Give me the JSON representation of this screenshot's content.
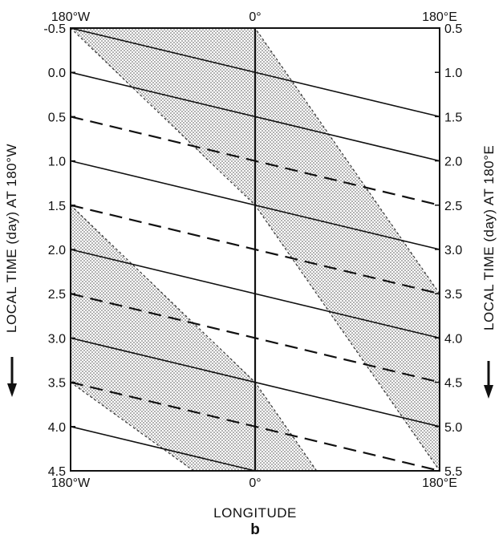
{
  "top_labels": {
    "left": "180°W",
    "center": "0°",
    "right": "180°E"
  },
  "bottom_labels": {
    "left": "180°W",
    "center": "0°",
    "right": "180°E"
  },
  "x_axis_label": "LONGITUDE",
  "panel_label": "b",
  "left_axis_label": "LOCAL TIME  (day) AT 180°W",
  "right_axis_label": "LOCAL TIME  (day) AT 180°E",
  "left_ticks": [
    "-0.5",
    "0.0",
    "0.5",
    "1.0",
    "1.5",
    "2.0",
    "2.5",
    "3.0",
    "3.5",
    "4.0",
    "4.5"
  ],
  "right_ticks": [
    "0.5",
    "1.0",
    "1.5",
    "2.0",
    "2.5",
    "3.0",
    "3.5",
    "4.0",
    "4.5",
    "5.0",
    "5.5"
  ],
  "colors": {
    "ink": "#111111",
    "shade": "#bdbdbd",
    "background": "#ffffff"
  },
  "chart_data": {
    "type": "line",
    "xlabel": "LONGITUDE",
    "ylabel_left": "LOCAL TIME  (day) AT 180°W",
    "ylabel_right": "LOCAL TIME  (day) AT 180°E",
    "xlim": [
      -180,
      180
    ],
    "ylim_left": [
      -0.5,
      4.5
    ],
    "ylim_right": [
      0.5,
      5.5
    ],
    "solid_lines_start_left_time": [
      -0.5,
      0.0,
      1.0,
      2.0,
      3.0,
      4.0
    ],
    "dashed_lines_start_left_time": [
      0.5,
      1.5,
      2.5,
      3.5
    ],
    "shaded_bands": [
      {
        "upper_edge": [
          [
            -180,
            -0.5
          ],
          [
            0,
            -0.5
          ],
          [
            180,
            2.5
          ]
        ],
        "lower_edge": [
          [
            -180,
            -0.5
          ],
          [
            0,
            1.5
          ],
          [
            180,
            4.5
          ]
        ]
      },
      {
        "upper_edge": [
          [
            -180,
            1.5
          ],
          [
            0,
            3.5
          ],
          [
            60,
            4.5
          ]
        ],
        "lower_edge": [
          [
            -180,
            3.5
          ],
          [
            -60,
            4.5
          ]
        ]
      }
    ]
  }
}
